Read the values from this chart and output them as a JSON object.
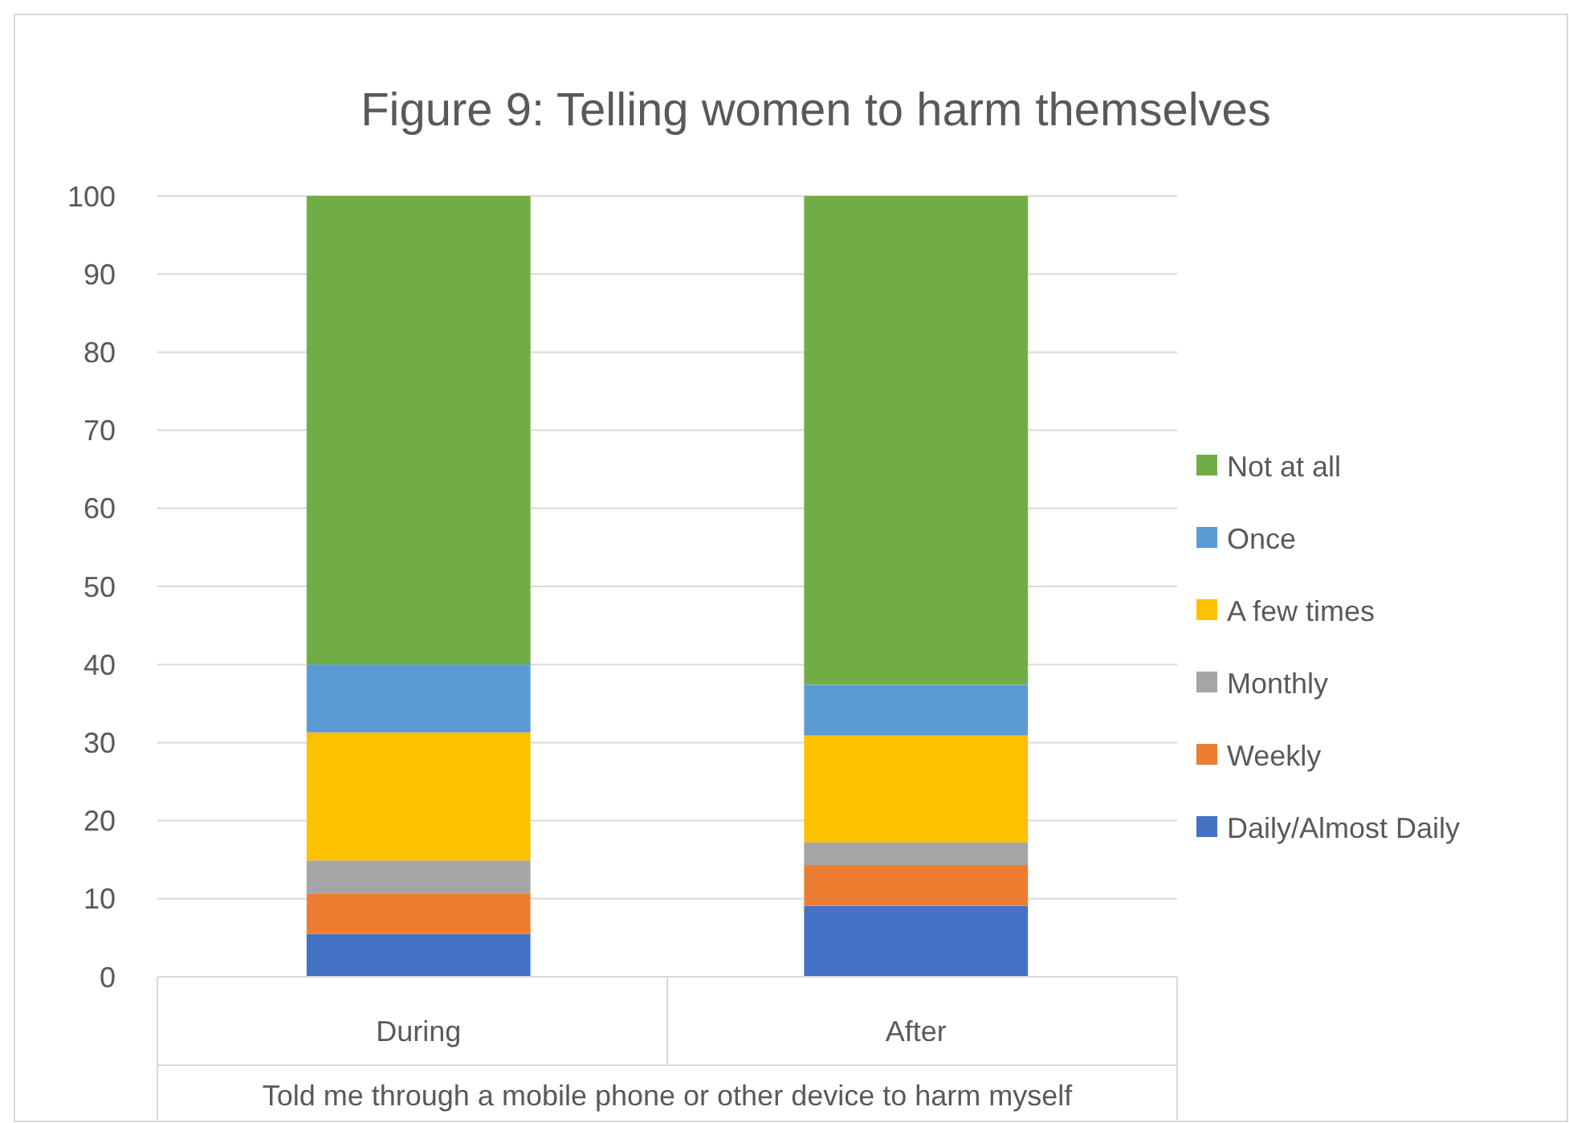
{
  "chart_data": {
    "type": "bar",
    "title": "Figure 9: Telling women to harm themselves",
    "xlabel": "Told me through a mobile phone or other device to harm myself",
    "categories": [
      "During",
      "After"
    ],
    "stacked": true,
    "ylim": [
      0,
      100
    ],
    "yticks": [
      0,
      10,
      20,
      30,
      40,
      50,
      60,
      70,
      80,
      90,
      100
    ],
    "grid": "y",
    "legend": "right",
    "series": [
      {
        "name": "Daily/Almost Daily",
        "color": "#4472c4",
        "values": [
          5.5,
          9.1
        ]
      },
      {
        "name": "Weekly",
        "color": "#ed7d31",
        "values": [
          5.1,
          5.2
        ]
      },
      {
        "name": "Monthly",
        "color": "#a5a5a5",
        "values": [
          4.3,
          2.9
        ]
      },
      {
        "name": "A few times",
        "color": "#ffc000",
        "values": [
          16.4,
          13.7
        ]
      },
      {
        "name": "Once",
        "color": "#5b9bd5",
        "values": [
          8.7,
          6.5
        ]
      },
      {
        "name": "Not at all",
        "color": "#70ad47",
        "values": [
          60.0,
          62.6
        ]
      }
    ]
  }
}
